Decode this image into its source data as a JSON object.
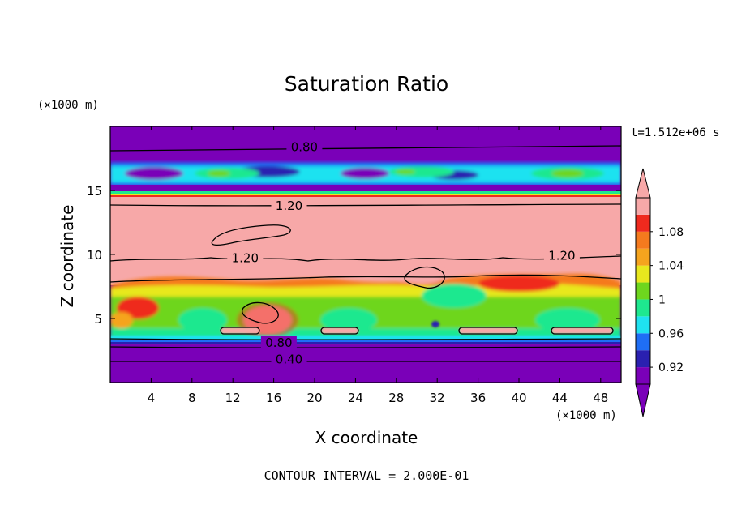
{
  "chart_data": {
    "type": "heatmap",
    "title": "Saturation Ratio",
    "xlabel": "X coordinate",
    "ylabel": "Z coordinate",
    "x_unit": "(×1000 m)",
    "y_unit": "(×1000 m)",
    "time_label": "t=1.512e+06 s",
    "footer": "CONTOUR INTERVAL = 2.000E-01",
    "xlim": [
      0,
      50
    ],
    "ylim": [
      0,
      20
    ],
    "x_ticks": [
      4,
      8,
      12,
      16,
      20,
      24,
      28,
      32,
      36,
      40,
      44,
      48
    ],
    "y_ticks": [
      5,
      10,
      15
    ],
    "colorbar": {
      "levels": [
        0.92,
        0.96,
        1,
        1.04,
        1.08
      ],
      "tick_labels": [
        "0.92",
        "0.96",
        "1",
        "1.04",
        "1.08"
      ],
      "colors": [
        "#7a00b8",
        "#2a20b0",
        "#1f6ef5",
        "#1fe2f0",
        "#1ee88f",
        "#6ed61e",
        "#e8e81e",
        "#f5a41e",
        "#f57a1e",
        "#ef2a1e",
        "#f7a8a8"
      ],
      "lower_extend_color": "#7a00b8",
      "upper_extend_color": "#f7a8a8"
    },
    "contour_labels": [
      {
        "value": "0.80",
        "x": 19,
        "z": 18.4
      },
      {
        "value": "1.20",
        "x": 17.5,
        "z": 13.8
      },
      {
        "value": "1.20",
        "x": 13.2,
        "z": 9.7
      },
      {
        "value": "1.20",
        "x": 44.2,
        "z": 9.9
      },
      {
        "value": "0.80",
        "x": 16.5,
        "z": 3.1
      },
      {
        "value": "0.40",
        "x": 17.5,
        "z": 1.8
      }
    ],
    "bands": [
      {
        "z": [
          0,
          3.4
        ],
        "value": "< 0.92"
      },
      {
        "z": [
          3.4,
          8.2
        ],
        "value": "≈ 1.00 (mixed)"
      },
      {
        "z": [
          8.2,
          14.2
        ],
        "value": "> 1.10"
      },
      {
        "z": [
          14.2,
          15.2
        ],
        "value": "mixed"
      },
      {
        "z": [
          15.2,
          17.2
        ],
        "value": "≈ 0.96–1.00"
      },
      {
        "z": [
          17.2,
          20
        ],
        "value": "< 0.92"
      }
    ]
  }
}
